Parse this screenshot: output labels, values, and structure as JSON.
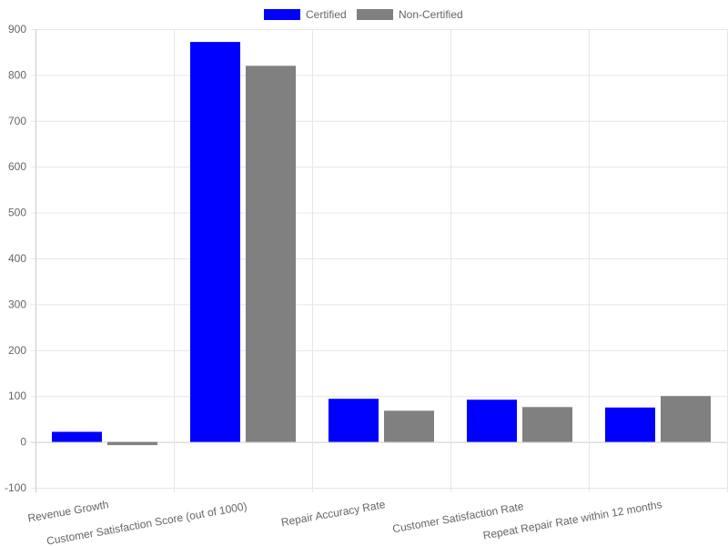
{
  "chart_data": {
    "type": "bar",
    "title": "",
    "xlabel": "",
    "ylabel": "",
    "categories": [
      "Revenue Growth",
      "Customer Satisfaction Score (out of 1000)",
      "Repair Accuracy Rate",
      "Customer Satisfaction Rate",
      "Repeat Repair Rate within 12 months"
    ],
    "series": [
      {
        "name": "Certified",
        "color": "#0000ff",
        "values": [
          22,
          872,
          94,
          92,
          75
        ]
      },
      {
        "name": "Non-Certified",
        "color": "#808080",
        "values": [
          -7,
          820,
          68,
          76,
          100
        ]
      }
    ],
    "ylim": [
      -100,
      900
    ],
    "yticks": [
      900,
      800,
      700,
      600,
      500,
      400,
      300,
      200,
      100,
      0,
      -100
    ],
    "grid": true,
    "legend_position": "top-center"
  }
}
